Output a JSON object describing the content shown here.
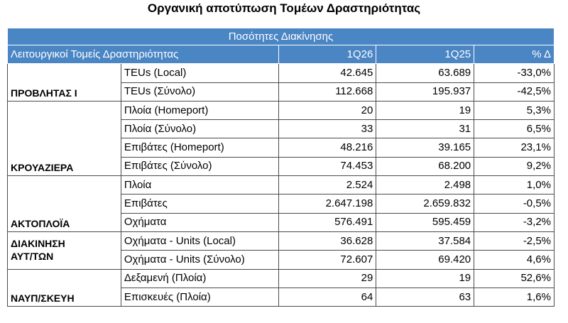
{
  "header": {
    "title": "Οργανική αποτύπωση Τομέων Δραστηριότητας"
  },
  "table": {
    "caption": "Ποσότητες Διακίνησης",
    "columns": [
      "Λειτουργικοί Τομείς Δραστηριότητας",
      "1Q26",
      "1Q25",
      "% Δ"
    ],
    "groups": [
      {
        "label": "ΠΡΟΒΛΗΤΑΣ Ι",
        "rows": [
          [
            "TEUs (Local)",
            "42.645",
            "63.689",
            "-33,0%"
          ],
          [
            "TEUs (Σύνολο)",
            "112.668",
            "195.937",
            "-42,5%"
          ]
        ]
      },
      {
        "label": "ΚΡΟΥΑΖΙΕΡΑ",
        "rows": [
          [
            "Πλοία (Homeport)",
            "20",
            "19",
            "5,3%"
          ],
          [
            "Πλοία (Σύνολο)",
            "33",
            "31",
            "6,5%"
          ],
          [
            "Επιβάτες (Homeport)",
            "48.216",
            "39.165",
            "23,1%"
          ],
          [
            "Επιβάτες (Σύνολο)",
            "74.453",
            "68.200",
            "9,2%"
          ]
        ]
      },
      {
        "label": "ΑΚΤΟΠΛΟΪΑ",
        "rows": [
          [
            "Πλοία",
            "2.524",
            "2.498",
            "1,0%"
          ],
          [
            "Επιβάτες",
            "2.647.198",
            "2.659.832",
            "-0,5%"
          ],
          [
            "Οχήματα",
            "576.491",
            "595.459",
            "-3,2%"
          ]
        ]
      },
      {
        "label": "ΔΙΑΚΙΝΗΣΗ ΑΥΤ/ΤΩΝ",
        "rows": [
          [
            "Οχήματα - Units (Local)",
            "36.628",
            "37.584",
            "-2,5%"
          ],
          [
            "Οχήματα - Units (Σύνολο)",
            "72.607",
            "69.420",
            "4,6%"
          ]
        ]
      },
      {
        "label": "ΝΑΥΠ/ΣΚΕΥΗ",
        "rows": [
          [
            "Δεξαμενή (Πλοία)",
            "29",
            "19",
            "52,6%"
          ],
          [
            "Επισκευές (Πλοία)",
            "64",
            "63",
            "1,6%"
          ]
        ]
      }
    ]
  }
}
